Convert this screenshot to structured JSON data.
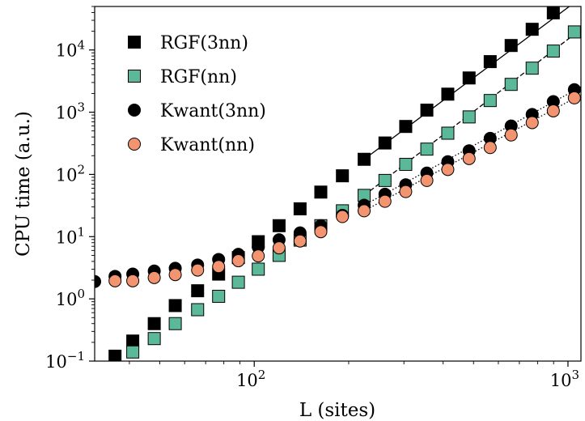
{
  "chart_data": {
    "type": "scatter",
    "xlabel": "L (sites)",
    "ylabel": "CPU time (a.u.)",
    "xscale": "log",
    "yscale": "log",
    "xlim": [
      31,
      1100
    ],
    "ylim": [
      0.1,
      50000
    ],
    "x_ticks": [
      {
        "value": 100,
        "base": "10",
        "exp": "2"
      },
      {
        "value": 1000,
        "base": "10",
        "exp": "3"
      }
    ],
    "y_ticks": [
      {
        "value": 0.1,
        "base": "10",
        "exp": "−1"
      },
      {
        "value": 1,
        "base": "10",
        "exp": "0"
      },
      {
        "value": 10,
        "base": "10",
        "exp": "1"
      },
      {
        "value": 100,
        "base": "10",
        "exp": "2"
      },
      {
        "value": 1000,
        "base": "10",
        "exp": "3"
      },
      {
        "value": 10000,
        "base": "10",
        "exp": "4"
      }
    ],
    "grid": false,
    "legend_position": "upper-left",
    "series": [
      {
        "name": "RGF(3nn)",
        "marker": "square",
        "color": "#000000",
        "edge": "#000000",
        "x": [
          36,
          41,
          48,
          56,
          66,
          77,
          89,
          103,
          120,
          140,
          163,
          191,
          224,
          261,
          304,
          355,
          414,
          484,
          565,
          659,
          769,
          898
        ],
        "y": [
          0.12,
          0.21,
          0.4,
          0.78,
          1.35,
          2.5,
          4.6,
          8.3,
          15,
          28,
          52,
          95,
          175,
          320,
          590,
          1080,
          1950,
          3550,
          6500,
          11800,
          21500,
          39500
        ],
        "fit": {
          "style": "solid",
          "x": [
            224,
            1100
          ],
          "y": [
            175,
            69000
          ]
        }
      },
      {
        "name": "RGF(nn)",
        "marker": "square",
        "color": "#5bb899",
        "edge": "#000000",
        "x": [
          41,
          48,
          56,
          66,
          77,
          89,
          103,
          120,
          140,
          163,
          191,
          224,
          261,
          304,
          355,
          414,
          484,
          565,
          659,
          769,
          898,
          1048
        ],
        "y": [
          0.14,
          0.23,
          0.4,
          0.67,
          1.1,
          1.85,
          3.0,
          5.0,
          8.8,
          15,
          26,
          46,
          80,
          145,
          255,
          460,
          840,
          1540,
          2800,
          5100,
          9600,
          19500
        ],
        "fit": {
          "style": "dashed",
          "x": [
            224,
            1100
          ],
          "y": [
            46,
            21500
          ]
        }
      },
      {
        "name": "Kwant(3nn)",
        "marker": "circle",
        "color": "#000000",
        "edge": "#000000",
        "x": [
          31,
          36,
          41,
          48,
          56,
          66,
          77,
          89,
          103,
          120,
          140,
          163,
          191,
          224,
          261,
          304,
          355,
          414,
          484,
          565,
          659,
          769,
          898,
          1048
        ],
        "y": [
          1.9,
          2.3,
          2.5,
          2.8,
          3.1,
          3.5,
          4.3,
          5.2,
          6.8,
          8.9,
          11.5,
          15,
          22,
          32,
          48,
          68,
          105,
          160,
          240,
          380,
          600,
          920,
          1480,
          2300
        ],
        "fit": {
          "style": "dotted",
          "x": [
            224,
            1100
          ],
          "y": [
            32,
            2550
          ]
        }
      },
      {
        "name": "Kwant(nn)",
        "marker": "circle",
        "color": "#f2946f",
        "edge": "#000000",
        "x": [
          36,
          41,
          48,
          56,
          66,
          77,
          89,
          103,
          120,
          140,
          163,
          191,
          224,
          261,
          304,
          355,
          414,
          484,
          565,
          659,
          769,
          898,
          1048
        ],
        "y": [
          1.95,
          1.95,
          2.2,
          2.45,
          2.9,
          3.3,
          4.1,
          4.9,
          6.6,
          8.5,
          12,
          21,
          26,
          37,
          53,
          80,
          120,
          180,
          270,
          430,
          680,
          1050,
          1700
        ],
        "fit": {
          "style": "dotted",
          "x": [
            224,
            1100
          ],
          "y": [
            26,
            1900
          ]
        }
      }
    ]
  }
}
